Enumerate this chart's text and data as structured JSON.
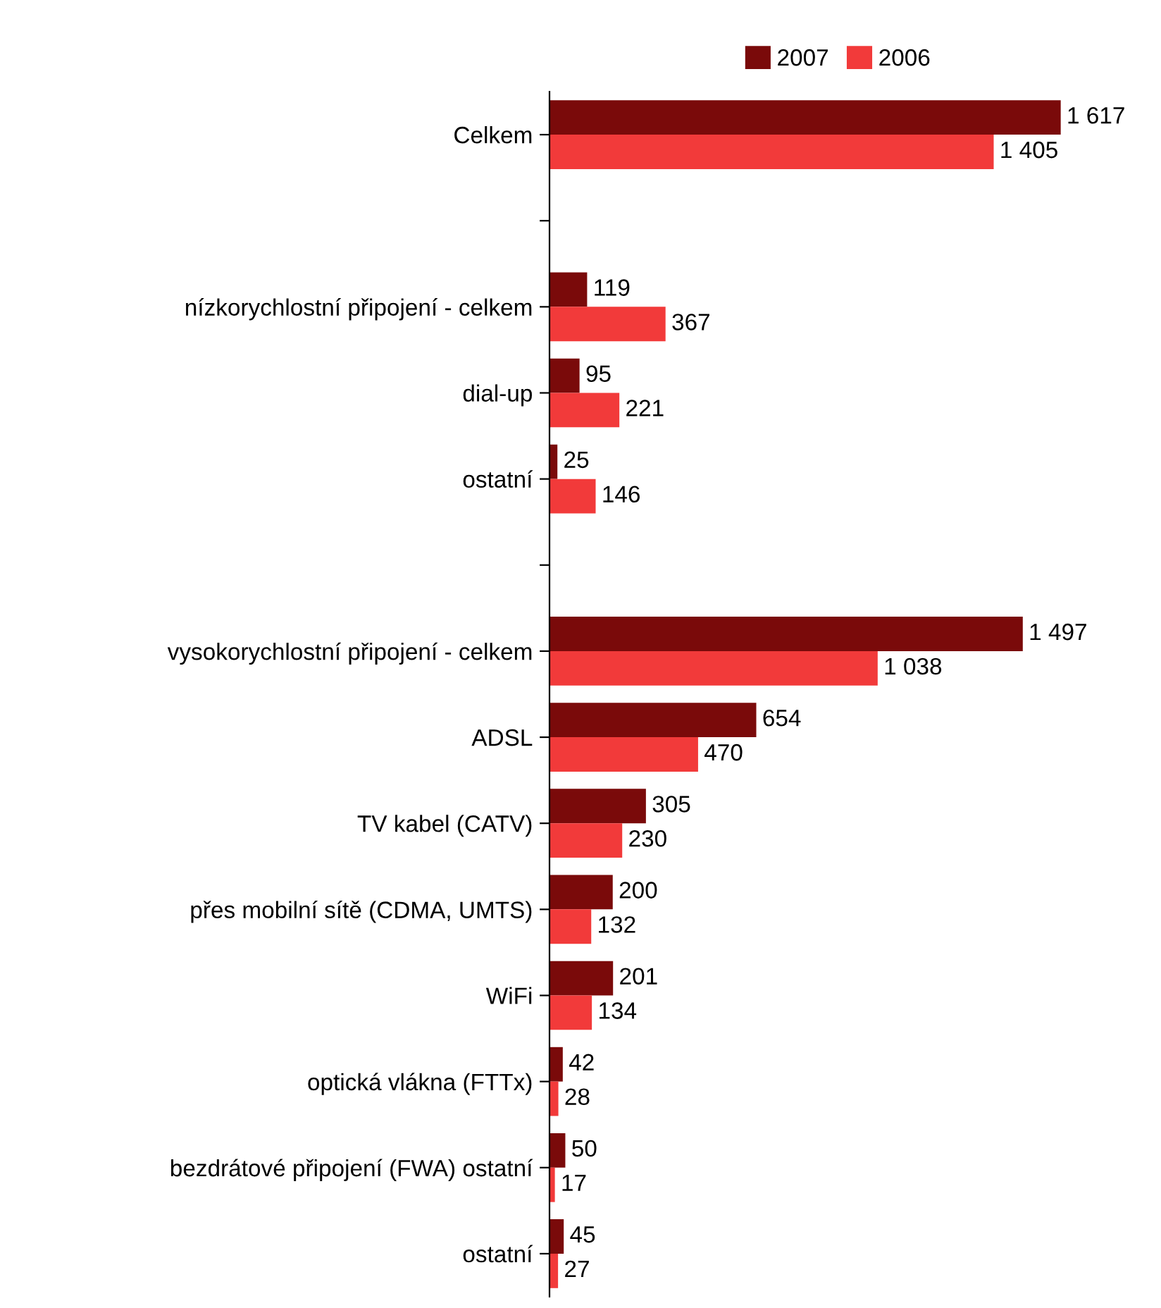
{
  "chart_data": {
    "type": "bar",
    "orientation": "horizontal",
    "legend": "top",
    "grid": false,
    "categories": [
      "Celkem",
      null,
      "nízkorychlostní připojení - celkem",
      "dial-up",
      "ostatní",
      null,
      "vysokorychlostní připojení - celkem",
      "ADSL",
      "TV kabel (CATV)",
      "přes mobilní sítě (CDMA, UMTS)",
      "WiFi",
      "optická vlákna (FTTx)",
      "bezdrátové připojení (FWA) ostatní",
      "ostatní"
    ],
    "series": [
      {
        "name": "2007",
        "color": "#7a0a0a",
        "values": [
          1617,
          null,
          119,
          95,
          25,
          null,
          1497,
          654,
          305,
          200,
          201,
          42,
          50,
          45
        ],
        "value_labels": [
          "1 617",
          null,
          "119",
          "95",
          "25",
          null,
          "1 497",
          "654",
          "305",
          "200",
          "201",
          "42",
          "50",
          "45"
        ]
      },
      {
        "name": "2006",
        "color": "#f23a3a",
        "values": [
          1405,
          null,
          367,
          221,
          146,
          null,
          1038,
          470,
          230,
          132,
          134,
          28,
          17,
          27
        ],
        "value_labels": [
          "1 405",
          null,
          "367",
          "221",
          "146",
          null,
          "1 038",
          "470",
          "230",
          "132",
          "134",
          "28",
          "17",
          "27"
        ]
      }
    ]
  }
}
